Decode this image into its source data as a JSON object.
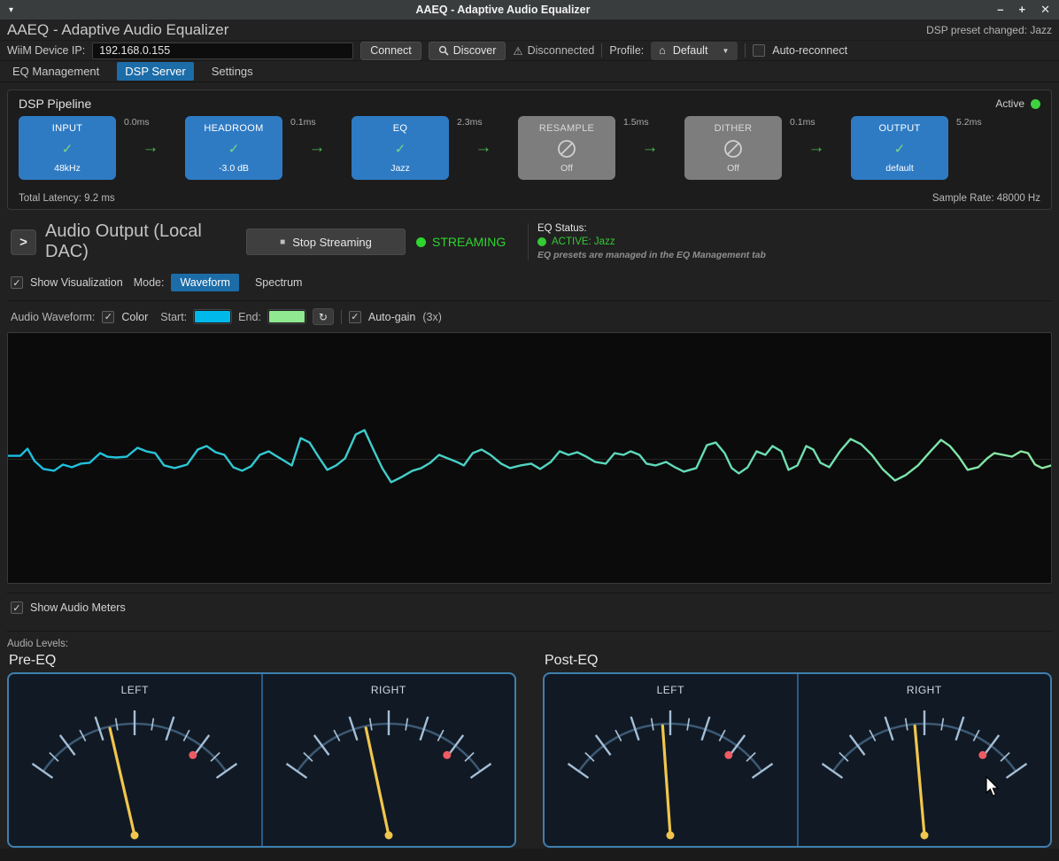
{
  "window": {
    "title": "AAEQ - Adaptive Audio Equalizer",
    "menu_icon": "▾",
    "minimize": "–",
    "maximize": "+",
    "close": "✕"
  },
  "header": {
    "title": "AAEQ - Adaptive Audio Equalizer",
    "notice": "DSP preset changed: Jazz"
  },
  "connection": {
    "ip_label": "WiiM Device IP:",
    "ip_value": "192.168.0.155",
    "connect_label": "Connect",
    "discover_label": "Discover",
    "warning_icon": "⚠",
    "status_label": "Disconnected",
    "profile_label": "Profile:",
    "profile_icon": "⌂",
    "profile_value": "Default",
    "auto_reconnect_label": "Auto-reconnect"
  },
  "tabs": {
    "items": [
      {
        "label": "EQ Management"
      },
      {
        "label": "DSP Server"
      },
      {
        "label": "Settings"
      }
    ]
  },
  "pipeline": {
    "title": "DSP Pipeline",
    "active_label": "Active",
    "check_glyph": "✓",
    "arrow_glyph": "→",
    "total_latency": "Total Latency: 9.2 ms",
    "sample_rate": "Sample Rate: 48000 Hz",
    "stages": [
      {
        "name": "INPUT",
        "detail": "48kHz",
        "latency": "0.0ms",
        "enabled": true
      },
      {
        "name": "HEADROOM",
        "detail": "-3.0 dB",
        "latency": "0.1ms",
        "enabled": true
      },
      {
        "name": "EQ",
        "detail": "Jazz",
        "latency": "2.3ms",
        "enabled": true
      },
      {
        "name": "RESAMPLE",
        "detail": "Off",
        "latency": "1.5ms",
        "enabled": false
      },
      {
        "name": "DITHER",
        "detail": "Off",
        "latency": "0.1ms",
        "enabled": false
      },
      {
        "name": "OUTPUT",
        "detail": "default",
        "latency": "5.2ms",
        "enabled": true
      }
    ]
  },
  "output": {
    "expander": ">",
    "title": "Audio Output (Local DAC)",
    "stop_icon": "■",
    "stop_label": "Stop Streaming",
    "streaming_label": "STREAMING",
    "eq_status_label": "EQ Status:",
    "eq_status_value": "ACTIVE: Jazz",
    "eq_status_note": "EQ presets are managed in the EQ Management tab"
  },
  "visualization": {
    "show_label": "Show Visualization",
    "mode_label": "Mode:",
    "modes": [
      {
        "label": "Waveform"
      },
      {
        "label": "Spectrum"
      }
    ]
  },
  "waveform_controls": {
    "label": "Audio Waveform:",
    "color_label": "Color",
    "start_label": "Start:",
    "start_color": "#00b9ea",
    "end_label": "End:",
    "end_color": "#90e890",
    "reset_icon": "↻",
    "autogain_label": "Auto-gain",
    "gain_value": "(3x)"
  },
  "waveform": {
    "stroke_start": "#17bfe2",
    "stroke_end": "#8ce9a0",
    "midline_color": "#262626",
    "points": [
      [
        0,
        4
      ],
      [
        14,
        4
      ],
      [
        22,
        12
      ],
      [
        30,
        -2
      ],
      [
        40,
        -11
      ],
      [
        52,
        -13
      ],
      [
        62,
        -6
      ],
      [
        72,
        -9
      ],
      [
        82,
        -5
      ],
      [
        92,
        -4
      ],
      [
        104,
        7
      ],
      [
        112,
        3
      ],
      [
        122,
        2
      ],
      [
        134,
        3
      ],
      [
        146,
        13
      ],
      [
        156,
        9
      ],
      [
        166,
        7
      ],
      [
        176,
        -7
      ],
      [
        188,
        -10
      ],
      [
        202,
        -6
      ],
      [
        214,
        11
      ],
      [
        224,
        15
      ],
      [
        234,
        8
      ],
      [
        244,
        5
      ],
      [
        254,
        -9
      ],
      [
        264,
        -13
      ],
      [
        274,
        -8
      ],
      [
        284,
        5
      ],
      [
        294,
        9
      ],
      [
        302,
        4
      ],
      [
        312,
        -2
      ],
      [
        320,
        -7
      ],
      [
        330,
        24
      ],
      [
        340,
        19
      ],
      [
        350,
        3
      ],
      [
        360,
        -12
      ],
      [
        370,
        -7
      ],
      [
        380,
        1
      ],
      [
        392,
        28
      ],
      [
        402,
        33
      ],
      [
        412,
        11
      ],
      [
        422,
        -10
      ],
      [
        432,
        -26
      ],
      [
        444,
        -20
      ],
      [
        456,
        -13
      ],
      [
        466,
        -10
      ],
      [
        476,
        -4
      ],
      [
        486,
        5
      ],
      [
        496,
        1
      ],
      [
        506,
        -3
      ],
      [
        514,
        -7
      ],
      [
        524,
        7
      ],
      [
        534,
        11
      ],
      [
        544,
        5
      ],
      [
        556,
        -5
      ],
      [
        566,
        -10
      ],
      [
        578,
        -7
      ],
      [
        590,
        -5
      ],
      [
        600,
        -11
      ],
      [
        612,
        -3
      ],
      [
        622,
        9
      ],
      [
        632,
        5
      ],
      [
        642,
        8
      ],
      [
        652,
        3
      ],
      [
        662,
        -3
      ],
      [
        674,
        -5
      ],
      [
        684,
        7
      ],
      [
        694,
        5
      ],
      [
        702,
        9
      ],
      [
        712,
        5
      ],
      [
        720,
        -5
      ],
      [
        730,
        -7
      ],
      [
        742,
        -3
      ],
      [
        752,
        -9
      ],
      [
        762,
        -14
      ],
      [
        776,
        -10
      ],
      [
        788,
        16
      ],
      [
        798,
        19
      ],
      [
        808,
        7
      ],
      [
        816,
        -10
      ],
      [
        824,
        -16
      ],
      [
        834,
        -9
      ],
      [
        844,
        9
      ],
      [
        854,
        5
      ],
      [
        862,
        15
      ],
      [
        872,
        9
      ],
      [
        880,
        -12
      ],
      [
        890,
        -7
      ],
      [
        900,
        15
      ],
      [
        908,
        11
      ],
      [
        916,
        -4
      ],
      [
        926,
        -9
      ],
      [
        938,
        9
      ],
      [
        950,
        23
      ],
      [
        962,
        17
      ],
      [
        974,
        5
      ],
      [
        986,
        -11
      ],
      [
        1000,
        -24
      ],
      [
        1012,
        -18
      ],
      [
        1026,
        -7
      ],
      [
        1040,
        9
      ],
      [
        1052,
        22
      ],
      [
        1062,
        15
      ],
      [
        1072,
        3
      ],
      [
        1082,
        -12
      ],
      [
        1094,
        -9
      ],
      [
        1104,
        1
      ],
      [
        1112,
        7
      ],
      [
        1122,
        5
      ],
      [
        1132,
        3
      ],
      [
        1142,
        9
      ],
      [
        1150,
        7
      ],
      [
        1158,
        -6
      ],
      [
        1166,
        -10
      ],
      [
        1176,
        -7
      ]
    ]
  },
  "meters_toggle_label": "Show Audio Meters",
  "levels": {
    "label": "Audio Levels:",
    "groups": [
      {
        "title": "Pre-EQ",
        "meters": [
          {
            "label": "LEFT",
            "needle_deg": -13
          },
          {
            "label": "RIGHT",
            "needle_deg": -12
          }
        ]
      },
      {
        "title": "Post-EQ",
        "meters": [
          {
            "label": "LEFT",
            "needle_deg": -4
          },
          {
            "label": "RIGHT",
            "needle_deg": -5
          }
        ]
      }
    ]
  },
  "colors": {
    "accent_blue": "#1c6ca8",
    "block_blue": "#2e7bc4",
    "status_green": "#2ed52e",
    "needle_yellow": "#f1c64d",
    "peak_red": "#ee5b64",
    "meter_border": "#3f7fae",
    "tick_color": "#a5bed6",
    "arc_color": "#3c5974"
  }
}
